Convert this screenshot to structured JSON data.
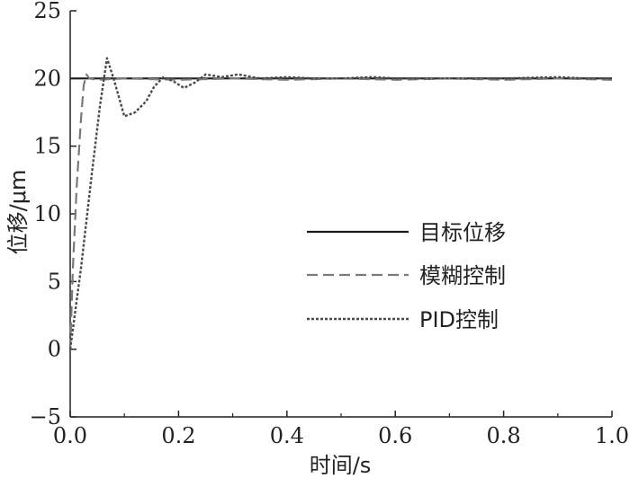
{
  "chart_data": {
    "type": "line",
    "xlabel": "时间/s",
    "ylabel": "位移/μm",
    "xlim": [
      0,
      1.0
    ],
    "ylim": [
      -5,
      25
    ],
    "x_ticks": [
      "0.0",
      "0.2",
      "0.4",
      "0.6",
      "0.8",
      "1.0"
    ],
    "y_ticks": [
      "25",
      "20",
      "15",
      "10",
      "5",
      "0",
      "−5"
    ],
    "grid": false,
    "legend_position": "center-right",
    "series": [
      {
        "name": "目标位移",
        "style": "solid",
        "color": "#1a1a1a",
        "x": [
          0.0,
          1.0
        ],
        "y": [
          20,
          20
        ]
      },
      {
        "name": "模糊控制",
        "style": "dashed",
        "color": "#7a7a7a",
        "x": [
          0.0,
          0.005,
          0.012,
          0.02,
          0.025,
          0.03,
          0.035,
          0.05,
          0.1,
          0.2,
          0.3,
          0.4,
          0.5,
          0.6,
          0.7,
          0.8,
          0.9,
          1.0
        ],
        "y": [
          0,
          6,
          12,
          17,
          19.5,
          20.3,
          20.0,
          19.9,
          20.0,
          19.9,
          20.0,
          19.9,
          20.0,
          19.9,
          20.0,
          19.9,
          20.0,
          19.9
        ]
      },
      {
        "name": "PID控制",
        "style": "dotted",
        "color": "#4a4a4a",
        "x": [
          0.0,
          0.02,
          0.04,
          0.055,
          0.068,
          0.08,
          0.1,
          0.12,
          0.14,
          0.155,
          0.172,
          0.19,
          0.21,
          0.23,
          0.25,
          0.28,
          0.31,
          0.35,
          0.4,
          0.45,
          0.5,
          0.56,
          0.6,
          0.7,
          0.8,
          0.9,
          0.95,
          1.0
        ],
        "y": [
          0,
          6,
          13,
          18,
          21.5,
          20.0,
          17.2,
          17.5,
          18.3,
          19.4,
          20.1,
          19.8,
          19.3,
          19.7,
          20.3,
          20.1,
          20.3,
          20.0,
          20.1,
          20.0,
          20.0,
          20.1,
          20.0,
          20.0,
          20.0,
          20.1,
          20.0,
          20.0
        ]
      }
    ]
  }
}
